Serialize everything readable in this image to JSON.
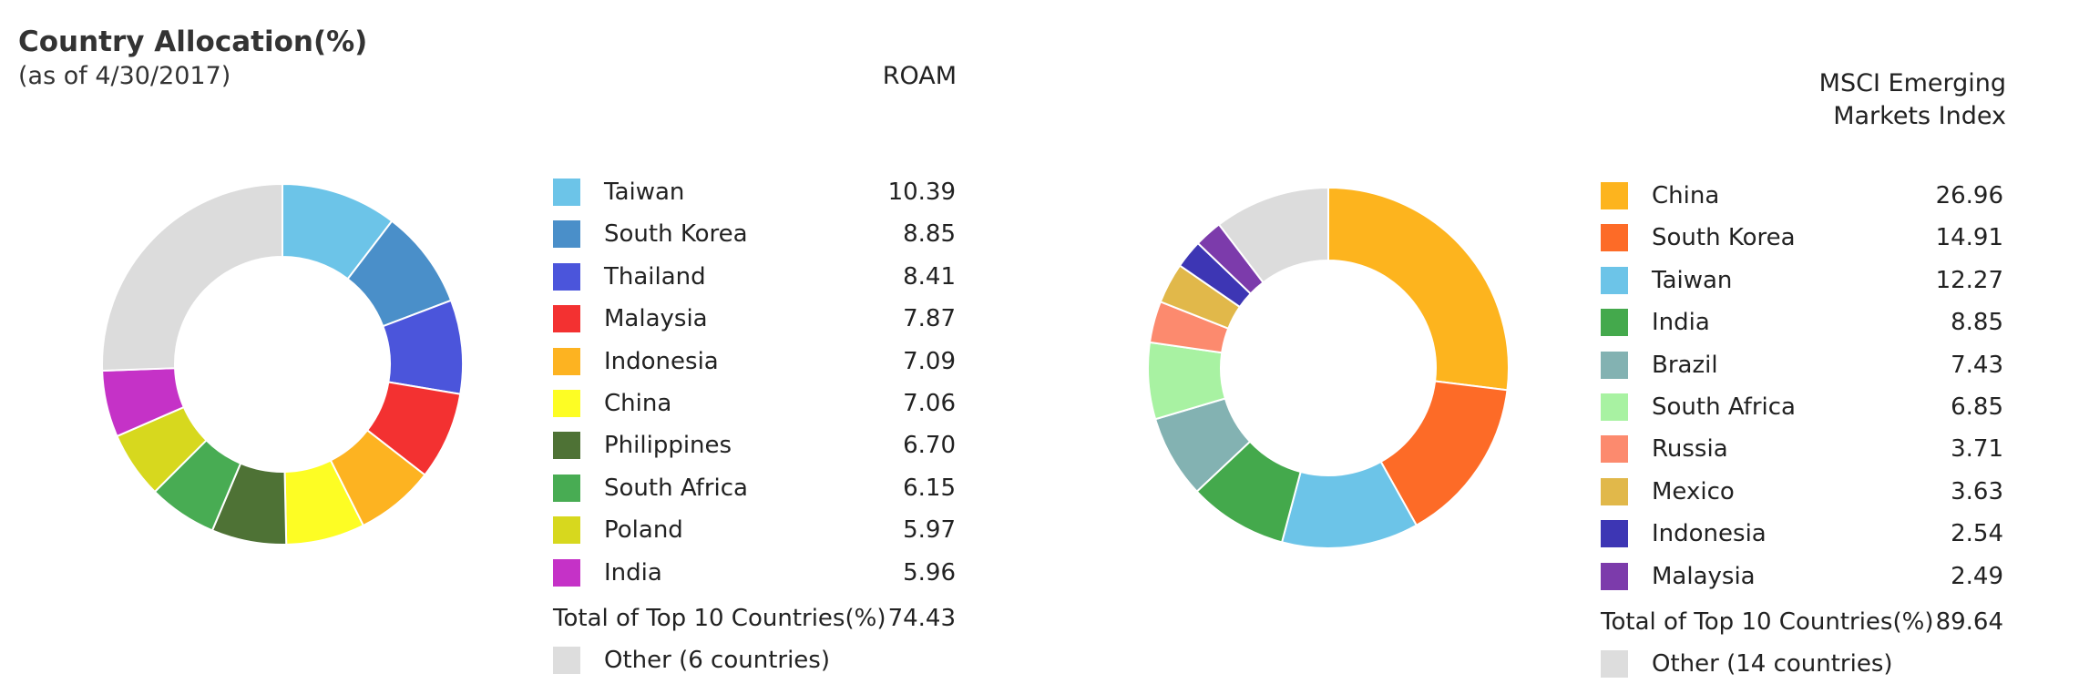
{
  "header": {
    "title": "Country Allocation(%)",
    "subtitle": "(as of 4/30/2017)"
  },
  "chart_data": [
    {
      "type": "pie",
      "title": "ROAM",
      "categories": [
        "Taiwan",
        "South Korea",
        "Thailand",
        "Malaysia",
        "Indonesia",
        "China",
        "Philippines",
        "South Africa",
        "Poland",
        "India"
      ],
      "values": [
        10.39,
        8.85,
        8.41,
        7.87,
        7.09,
        7.06,
        6.7,
        6.15,
        5.97,
        5.96
      ],
      "value_labels": [
        "10.39",
        "8.85",
        "8.41",
        "7.87",
        "7.09",
        "7.06",
        "6.70",
        "6.15",
        "5.97",
        "5.96"
      ],
      "colors": [
        "#6cc4e8",
        "#4a8fc9",
        "#4b55db",
        "#f33131",
        "#fdb321",
        "#fdfd24",
        "#4e7235",
        "#48ac53",
        "#d7d81e",
        "#c532c7"
      ],
      "total_label": "Total of Top 10 Countries(%)",
      "total_value": "74.43",
      "other_label": "Other (6 countries)",
      "other_value": 25.57,
      "other_color": "#dcdcdc"
    },
    {
      "type": "pie",
      "title": "MSCI Emerging Markets Index",
      "title_lines": [
        "MSCI Emerging",
        "Markets Index"
      ],
      "categories": [
        "China",
        "South Korea",
        "Taiwan",
        "India",
        "Brazil",
        "South Africa",
        "Russia",
        "Mexico",
        "Indonesia",
        "Malaysia"
      ],
      "values": [
        26.96,
        14.91,
        12.27,
        8.85,
        7.43,
        6.85,
        3.71,
        3.63,
        2.54,
        2.49
      ],
      "value_labels": [
        "26.96",
        "14.91",
        "12.27",
        "8.85",
        "7.43",
        "6.85",
        "3.71",
        "3.63",
        "2.54",
        "2.49"
      ],
      "colors": [
        "#fdb41e",
        "#fd6b27",
        "#6cc4e8",
        "#44a94c",
        "#83b2b2",
        "#a8f2a2",
        "#fc8a6e",
        "#e1b84a",
        "#3d36b4",
        "#7c3bab"
      ],
      "total_label": "Total of Top 10 Countries(%)",
      "total_value": "89.64",
      "other_label": "Other (14 countries)",
      "other_value": 10.36,
      "other_color": "#dcdcdc"
    }
  ]
}
